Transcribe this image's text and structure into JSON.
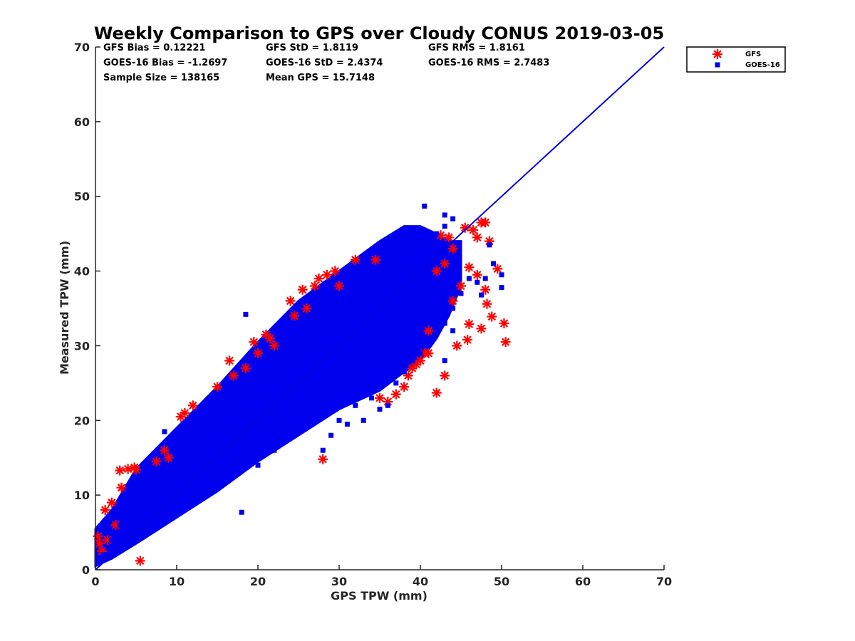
{
  "chart_data": {
    "type": "scatter",
    "title": "Weekly Comparison to GPS over Cloudy CONUS 2019-03-05",
    "xlabel": "GPS TPW (mm)",
    "ylabel": "Measured TPW (mm)",
    "xlim": [
      0,
      70
    ],
    "ylim": [
      0,
      70
    ],
    "xticks": [
      "0",
      "10",
      "20",
      "30",
      "40",
      "50",
      "60",
      "70"
    ],
    "yticks": [
      "0",
      "10",
      "20",
      "30",
      "40",
      "50",
      "60",
      "70"
    ],
    "grid": false,
    "legend_position": "outside top-right",
    "stats": [
      "GFS Bias = 0.12221",
      "GFS StD = 1.8119",
      "GFS RMS = 1.8161",
      "GOES-16 Bias = -1.2697",
      "GOES-16 StD = 2.4374",
      "GOES-16 RMS = 2.7483",
      "Sample Size = 138165",
      "Mean GPS = 15.7148"
    ],
    "reference_line": {
      "x": [
        0,
        70
      ],
      "y": [
        0,
        70
      ],
      "color": "#0000dd"
    },
    "series": [
      {
        "name": "GFS",
        "marker": "asterisk",
        "color": "#ff0000",
        "points": [
          [
            0.3,
            4.5
          ],
          [
            0.5,
            3.5
          ],
          [
            0.8,
            2.5
          ],
          [
            1.2,
            8
          ],
          [
            1.5,
            4
          ],
          [
            2,
            9
          ],
          [
            2.5,
            6
          ],
          [
            3,
            13.3
          ],
          [
            3.2,
            11
          ],
          [
            4,
            13.5
          ],
          [
            4.8,
            13.7
          ],
          [
            5,
            13.4
          ],
          [
            5.5,
            1.2
          ],
          [
            7.5,
            14.5
          ],
          [
            8.5,
            16
          ],
          [
            9,
            15
          ],
          [
            10.5,
            20.5
          ],
          [
            11,
            21
          ],
          [
            12,
            22
          ],
          [
            15,
            24.5
          ],
          [
            16.5,
            28
          ],
          [
            17,
            26
          ],
          [
            18.5,
            27
          ],
          [
            19.5,
            30.5
          ],
          [
            20,
            29
          ],
          [
            21,
            31.5
          ],
          [
            21.5,
            31
          ],
          [
            22,
            30
          ],
          [
            24,
            36
          ],
          [
            24.5,
            34
          ],
          [
            25.5,
            37.5
          ],
          [
            26,
            35
          ],
          [
            27,
            38
          ],
          [
            27.5,
            39
          ],
          [
            28,
            14.8
          ],
          [
            28.5,
            39.5
          ],
          [
            29.5,
            40
          ],
          [
            30,
            38
          ],
          [
            32,
            41.5
          ],
          [
            34.5,
            41.5
          ],
          [
            35,
            23
          ],
          [
            36,
            22.5
          ],
          [
            37,
            23.5
          ],
          [
            38,
            24.5
          ],
          [
            38.5,
            26
          ],
          [
            39,
            27
          ],
          [
            39.5,
            27.5
          ],
          [
            40,
            28
          ],
          [
            40.5,
            29
          ],
          [
            41,
            29
          ],
          [
            41,
            32
          ],
          [
            42,
            23.7
          ],
          [
            42.5,
            44.8
          ],
          [
            43,
            26
          ],
          [
            43.5,
            44.5
          ],
          [
            44,
            43
          ],
          [
            44.5,
            30
          ],
          [
            45.5,
            45.8
          ],
          [
            45.8,
            30.8
          ],
          [
            46,
            32.9
          ],
          [
            46.5,
            45.5
          ],
          [
            47,
            44.5
          ],
          [
            47.5,
            32.3
          ],
          [
            47.5,
            46.5
          ],
          [
            48,
            46.5
          ],
          [
            48,
            37.5
          ],
          [
            48.2,
            35.6
          ],
          [
            48.5,
            44
          ],
          [
            48.8,
            33.9
          ],
          [
            49.5,
            40.3
          ],
          [
            50.3,
            33
          ],
          [
            50.5,
            30.5
          ],
          [
            44,
            36
          ],
          [
            45,
            38
          ],
          [
            46,
            40.5
          ],
          [
            47,
            39.5
          ],
          [
            43,
            41
          ],
          [
            42,
            40
          ]
        ]
      },
      {
        "name": "GOES-16",
        "marker": "square",
        "color": "#0000ee",
        "points": [
          [
            0.5,
            1
          ],
          [
            1,
            2
          ],
          [
            1.5,
            3
          ],
          [
            2,
            4
          ],
          [
            2.5,
            5
          ],
          [
            3,
            6
          ],
          [
            4,
            7
          ],
          [
            5,
            8
          ],
          [
            6,
            9
          ],
          [
            7,
            10
          ],
          [
            8,
            11
          ],
          [
            9,
            12
          ],
          [
            10,
            13
          ],
          [
            11,
            14
          ],
          [
            12,
            15
          ],
          [
            13,
            16
          ],
          [
            14,
            17
          ],
          [
            15,
            18
          ],
          [
            16,
            19
          ],
          [
            17,
            20
          ],
          [
            18,
            21
          ],
          [
            19,
            22
          ],
          [
            20,
            23
          ],
          [
            21,
            24
          ],
          [
            22,
            25
          ],
          [
            23,
            26
          ],
          [
            24,
            27
          ],
          [
            25,
            28
          ],
          [
            26,
            29
          ],
          [
            27,
            30
          ],
          [
            28,
            31
          ],
          [
            29,
            32
          ],
          [
            30,
            33
          ],
          [
            31,
            34
          ],
          [
            32,
            35
          ],
          [
            33,
            36
          ],
          [
            34,
            37
          ],
          [
            35,
            38
          ],
          [
            36,
            39
          ],
          [
            37,
            40
          ],
          [
            38,
            41
          ],
          [
            39,
            42
          ],
          [
            40,
            43
          ],
          [
            41,
            44
          ],
          [
            42,
            45
          ],
          [
            43,
            46
          ],
          [
            44,
            47
          ],
          [
            8.5,
            18.5
          ],
          [
            18.5,
            34.2
          ],
          [
            40.5,
            48.7
          ],
          [
            43,
            47.5
          ],
          [
            38,
            44
          ],
          [
            18,
            7.7
          ],
          [
            20,
            14
          ],
          [
            22,
            16
          ],
          [
            25,
            19
          ],
          [
            27,
            21
          ],
          [
            28,
            16
          ],
          [
            29,
            18
          ],
          [
            30,
            20
          ],
          [
            31,
            19.5
          ],
          [
            32,
            22
          ],
          [
            33,
            20
          ],
          [
            34,
            23
          ],
          [
            35,
            21.5
          ],
          [
            36,
            22
          ],
          [
            37,
            25
          ],
          [
            38,
            26.5
          ],
          [
            39,
            28
          ],
          [
            40,
            29
          ],
          [
            41,
            31
          ],
          [
            42,
            32
          ],
          [
            43,
            33
          ],
          [
            44,
            35
          ],
          [
            45,
            37
          ],
          [
            46,
            39
          ],
          [
            47,
            38.5
          ],
          [
            48,
            39
          ],
          [
            49,
            41
          ],
          [
            50,
            39.5
          ],
          [
            50,
            37.8
          ],
          [
            47.5,
            36.8
          ],
          [
            48.5,
            43.5
          ],
          [
            43,
            28
          ],
          [
            44,
            32
          ]
        ]
      }
    ]
  }
}
